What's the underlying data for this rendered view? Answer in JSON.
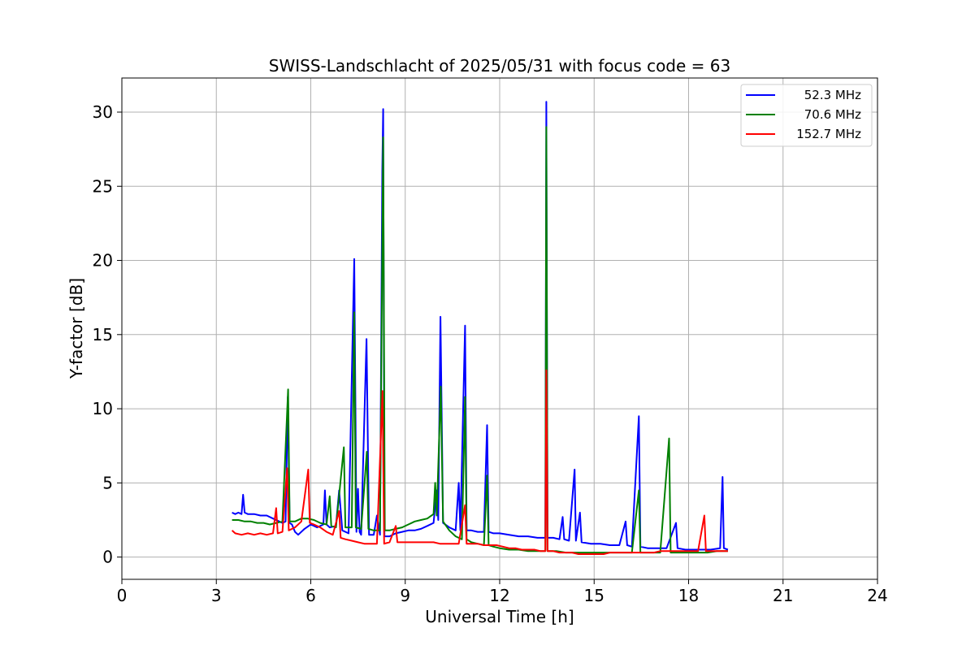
{
  "chart_data": {
    "type": "line",
    "title": "SWISS-Landschlacht of 2025/05/31 with focus code = 63",
    "xlabel": "Universal Time [h]",
    "ylabel": "Y-factor [dB]",
    "xlim": [
      0,
      24
    ],
    "ylim": [
      -1.5,
      32.3
    ],
    "xticks": [
      0,
      3,
      6,
      9,
      12,
      15,
      18,
      21,
      24
    ],
    "yticks": [
      0,
      5,
      10,
      15,
      20,
      25,
      30
    ],
    "grid": true,
    "legend_position": "top-right",
    "series": [
      {
        "name": "52.3 MHz",
        "color": "#0000ff",
        "points": [
          [
            3.5,
            3.0
          ],
          [
            3.6,
            2.9
          ],
          [
            3.7,
            3.0
          ],
          [
            3.8,
            2.9
          ],
          [
            3.85,
            4.2
          ],
          [
            3.9,
            3.0
          ],
          [
            4.0,
            2.9
          ],
          [
            4.2,
            2.9
          ],
          [
            4.4,
            2.8
          ],
          [
            4.6,
            2.8
          ],
          [
            4.8,
            2.6
          ],
          [
            5.0,
            2.4
          ],
          [
            5.1,
            2.3
          ],
          [
            5.2,
            2.4
          ],
          [
            5.27,
            10.8
          ],
          [
            5.33,
            2.3
          ],
          [
            5.4,
            2.2
          ],
          [
            5.5,
            1.7
          ],
          [
            5.6,
            1.5
          ],
          [
            5.8,
            1.9
          ],
          [
            6.0,
            2.2
          ],
          [
            6.2,
            2.0
          ],
          [
            6.4,
            2.2
          ],
          [
            6.45,
            4.5
          ],
          [
            6.5,
            2.2
          ],
          [
            6.6,
            2.0
          ],
          [
            6.8,
            2.1
          ],
          [
            6.9,
            4.5
          ],
          [
            7.0,
            1.8
          ],
          [
            7.2,
            1.6
          ],
          [
            7.38,
            20.1
          ],
          [
            7.45,
            1.7
          ],
          [
            7.5,
            4.6
          ],
          [
            7.55,
            1.7
          ],
          [
            7.6,
            1.5
          ],
          [
            7.77,
            14.7
          ],
          [
            7.85,
            1.5
          ],
          [
            8.0,
            1.5
          ],
          [
            8.1,
            2.8
          ],
          [
            8.2,
            1.5
          ],
          [
            8.27,
            26.0
          ],
          [
            8.3,
            30.2
          ],
          [
            8.34,
            1.4
          ],
          [
            8.5,
            1.4
          ],
          [
            8.7,
            1.6
          ],
          [
            8.9,
            1.7
          ],
          [
            9.1,
            1.8
          ],
          [
            9.3,
            1.8
          ],
          [
            9.5,
            1.9
          ],
          [
            9.7,
            2.1
          ],
          [
            9.9,
            2.3
          ],
          [
            10.0,
            4.5
          ],
          [
            10.05,
            2.5
          ],
          [
            10.12,
            16.2
          ],
          [
            10.2,
            2.3
          ],
          [
            10.4,
            2.0
          ],
          [
            10.6,
            1.8
          ],
          [
            10.7,
            5.0
          ],
          [
            10.75,
            1.8
          ],
          [
            10.9,
            15.6
          ],
          [
            10.95,
            1.8
          ],
          [
            11.1,
            1.8
          ],
          [
            11.3,
            1.7
          ],
          [
            11.5,
            1.7
          ],
          [
            11.6,
            8.9
          ],
          [
            11.65,
            1.7
          ],
          [
            11.8,
            1.6
          ],
          [
            12.0,
            1.6
          ],
          [
            12.3,
            1.5
          ],
          [
            12.6,
            1.4
          ],
          [
            12.9,
            1.4
          ],
          [
            13.2,
            1.3
          ],
          [
            13.45,
            1.3
          ],
          [
            13.48,
            30.7
          ],
          [
            13.52,
            1.3
          ],
          [
            13.7,
            1.3
          ],
          [
            13.9,
            1.2
          ],
          [
            14.0,
            2.7
          ],
          [
            14.05,
            1.2
          ],
          [
            14.2,
            1.1
          ],
          [
            14.38,
            5.9
          ],
          [
            14.42,
            1.1
          ],
          [
            14.55,
            3.0
          ],
          [
            14.6,
            1.0
          ],
          [
            14.9,
            0.9
          ],
          [
            15.2,
            0.9
          ],
          [
            15.5,
            0.8
          ],
          [
            15.8,
            0.8
          ],
          [
            16.0,
            2.4
          ],
          [
            16.05,
            0.8
          ],
          [
            16.2,
            0.7
          ],
          [
            16.42,
            9.5
          ],
          [
            16.47,
            0.7
          ],
          [
            16.7,
            0.6
          ],
          [
            17.0,
            0.6
          ],
          [
            17.3,
            0.6
          ],
          [
            17.6,
            2.3
          ],
          [
            17.65,
            0.6
          ],
          [
            17.9,
            0.5
          ],
          [
            18.1,
            0.5
          ],
          [
            18.4,
            0.5
          ],
          [
            18.7,
            0.5
          ],
          [
            19.0,
            0.6
          ],
          [
            19.08,
            5.4
          ],
          [
            19.12,
            0.6
          ],
          [
            19.25,
            0.5
          ]
        ]
      },
      {
        "name": "70.6 MHz",
        "color": "#008000",
        "points": [
          [
            3.5,
            2.5
          ],
          [
            3.7,
            2.5
          ],
          [
            3.9,
            2.4
          ],
          [
            4.1,
            2.4
          ],
          [
            4.3,
            2.3
          ],
          [
            4.5,
            2.3
          ],
          [
            4.7,
            2.2
          ],
          [
            4.9,
            2.3
          ],
          [
            5.1,
            2.4
          ],
          [
            5.28,
            11.3
          ],
          [
            5.33,
            2.4
          ],
          [
            5.5,
            2.4
          ],
          [
            5.7,
            2.6
          ],
          [
            5.9,
            2.6
          ],
          [
            6.1,
            2.5
          ],
          [
            6.3,
            2.3
          ],
          [
            6.5,
            2.2
          ],
          [
            6.6,
            4.1
          ],
          [
            6.65,
            2.1
          ],
          [
            6.8,
            2.0
          ],
          [
            7.05,
            7.4
          ],
          [
            7.1,
            2.0
          ],
          [
            7.3,
            2.0
          ],
          [
            7.38,
            16.5
          ],
          [
            7.43,
            2.0
          ],
          [
            7.6,
            1.9
          ],
          [
            7.78,
            7.1
          ],
          [
            7.83,
            1.9
          ],
          [
            8.0,
            1.8
          ],
          [
            8.2,
            1.8
          ],
          [
            8.3,
            28.3
          ],
          [
            8.35,
            1.8
          ],
          [
            8.5,
            1.8
          ],
          [
            8.7,
            1.9
          ],
          [
            8.9,
            2.0
          ],
          [
            9.1,
            2.2
          ],
          [
            9.3,
            2.4
          ],
          [
            9.5,
            2.5
          ],
          [
            9.7,
            2.6
          ],
          [
            9.9,
            2.9
          ],
          [
            9.95,
            5.0
          ],
          [
            10.0,
            2.8
          ],
          [
            10.13,
            11.5
          ],
          [
            10.2,
            2.4
          ],
          [
            10.4,
            1.8
          ],
          [
            10.6,
            1.4
          ],
          [
            10.8,
            1.2
          ],
          [
            10.9,
            10.8
          ],
          [
            10.95,
            1.2
          ],
          [
            11.1,
            1.0
          ],
          [
            11.3,
            0.9
          ],
          [
            11.5,
            0.8
          ],
          [
            11.6,
            5.5
          ],
          [
            11.65,
            0.8
          ],
          [
            11.8,
            0.7
          ],
          [
            12.0,
            0.6
          ],
          [
            12.3,
            0.5
          ],
          [
            12.6,
            0.5
          ],
          [
            12.9,
            0.4
          ],
          [
            13.2,
            0.4
          ],
          [
            13.45,
            0.4
          ],
          [
            13.48,
            29.0
          ],
          [
            13.52,
            0.4
          ],
          [
            13.8,
            0.4
          ],
          [
            14.1,
            0.3
          ],
          [
            14.4,
            0.3
          ],
          [
            14.7,
            0.3
          ],
          [
            15.0,
            0.3
          ],
          [
            15.3,
            0.3
          ],
          [
            15.6,
            0.3
          ],
          [
            15.9,
            0.3
          ],
          [
            16.2,
            0.3
          ],
          [
            16.42,
            4.5
          ],
          [
            16.47,
            0.3
          ],
          [
            16.8,
            0.3
          ],
          [
            17.1,
            0.3
          ],
          [
            17.38,
            8.0
          ],
          [
            17.43,
            0.3
          ],
          [
            17.7,
            0.3
          ],
          [
            18.0,
            0.3
          ],
          [
            18.3,
            0.3
          ],
          [
            18.6,
            0.3
          ],
          [
            18.9,
            0.4
          ],
          [
            19.25,
            0.4
          ]
        ]
      },
      {
        "name": "152.7 MHz",
        "color": "#ff0000",
        "points": [
          [
            3.5,
            1.8
          ],
          [
            3.6,
            1.6
          ],
          [
            3.8,
            1.5
          ],
          [
            4.0,
            1.6
          ],
          [
            4.2,
            1.5
          ],
          [
            4.4,
            1.6
          ],
          [
            4.6,
            1.5
          ],
          [
            4.8,
            1.6
          ],
          [
            4.9,
            3.3
          ],
          [
            4.95,
            1.6
          ],
          [
            5.1,
            1.7
          ],
          [
            5.25,
            6.0
          ],
          [
            5.3,
            1.8
          ],
          [
            5.5,
            2.0
          ],
          [
            5.7,
            2.4
          ],
          [
            5.92,
            5.9
          ],
          [
            5.97,
            2.3
          ],
          [
            6.1,
            2.2
          ],
          [
            6.3,
            2.0
          ],
          [
            6.5,
            1.7
          ],
          [
            6.7,
            1.5
          ],
          [
            6.9,
            3.1
          ],
          [
            6.95,
            1.3
          ],
          [
            7.1,
            1.2
          ],
          [
            7.3,
            1.1
          ],
          [
            7.5,
            1.0
          ],
          [
            7.7,
            0.9
          ],
          [
            7.9,
            0.9
          ],
          [
            8.1,
            0.9
          ],
          [
            8.28,
            11.2
          ],
          [
            8.33,
            0.9
          ],
          [
            8.5,
            1.0
          ],
          [
            8.7,
            2.1
          ],
          [
            8.75,
            1.0
          ],
          [
            8.9,
            1.0
          ],
          [
            9.1,
            1.0
          ],
          [
            9.3,
            1.0
          ],
          [
            9.5,
            1.0
          ],
          [
            9.7,
            1.0
          ],
          [
            9.9,
            1.0
          ],
          [
            10.1,
            0.9
          ],
          [
            10.3,
            0.9
          ],
          [
            10.5,
            0.9
          ],
          [
            10.7,
            0.9
          ],
          [
            10.9,
            3.5
          ],
          [
            10.95,
            0.9
          ],
          [
            11.1,
            0.9
          ],
          [
            11.3,
            0.9
          ],
          [
            11.5,
            0.8
          ],
          [
            11.7,
            0.8
          ],
          [
            11.9,
            0.8
          ],
          [
            12.1,
            0.7
          ],
          [
            12.3,
            0.6
          ],
          [
            12.5,
            0.6
          ],
          [
            12.7,
            0.5
          ],
          [
            12.9,
            0.5
          ],
          [
            13.1,
            0.5
          ],
          [
            13.3,
            0.4
          ],
          [
            13.45,
            0.4
          ],
          [
            13.48,
            12.6
          ],
          [
            13.52,
            0.4
          ],
          [
            13.7,
            0.4
          ],
          [
            13.9,
            0.3
          ],
          [
            14.1,
            0.3
          ],
          [
            14.3,
            0.3
          ],
          [
            14.5,
            0.2
          ],
          [
            14.7,
            0.2
          ],
          [
            14.9,
            0.2
          ],
          [
            15.1,
            0.2
          ],
          [
            15.3,
            0.2
          ],
          [
            15.5,
            0.3
          ],
          [
            15.7,
            0.3
          ],
          [
            15.9,
            0.3
          ],
          [
            16.1,
            0.3
          ],
          [
            16.3,
            0.3
          ],
          [
            16.5,
            0.3
          ],
          [
            16.7,
            0.3
          ],
          [
            16.9,
            0.3
          ],
          [
            17.1,
            0.4
          ],
          [
            17.3,
            0.4
          ],
          [
            17.5,
            0.4
          ],
          [
            17.7,
            0.4
          ],
          [
            17.9,
            0.4
          ],
          [
            18.1,
            0.4
          ],
          [
            18.3,
            0.4
          ],
          [
            18.5,
            2.8
          ],
          [
            18.55,
            0.4
          ],
          [
            18.7,
            0.4
          ],
          [
            18.9,
            0.4
          ],
          [
            19.1,
            0.4
          ],
          [
            19.25,
            0.4
          ]
        ]
      }
    ]
  }
}
